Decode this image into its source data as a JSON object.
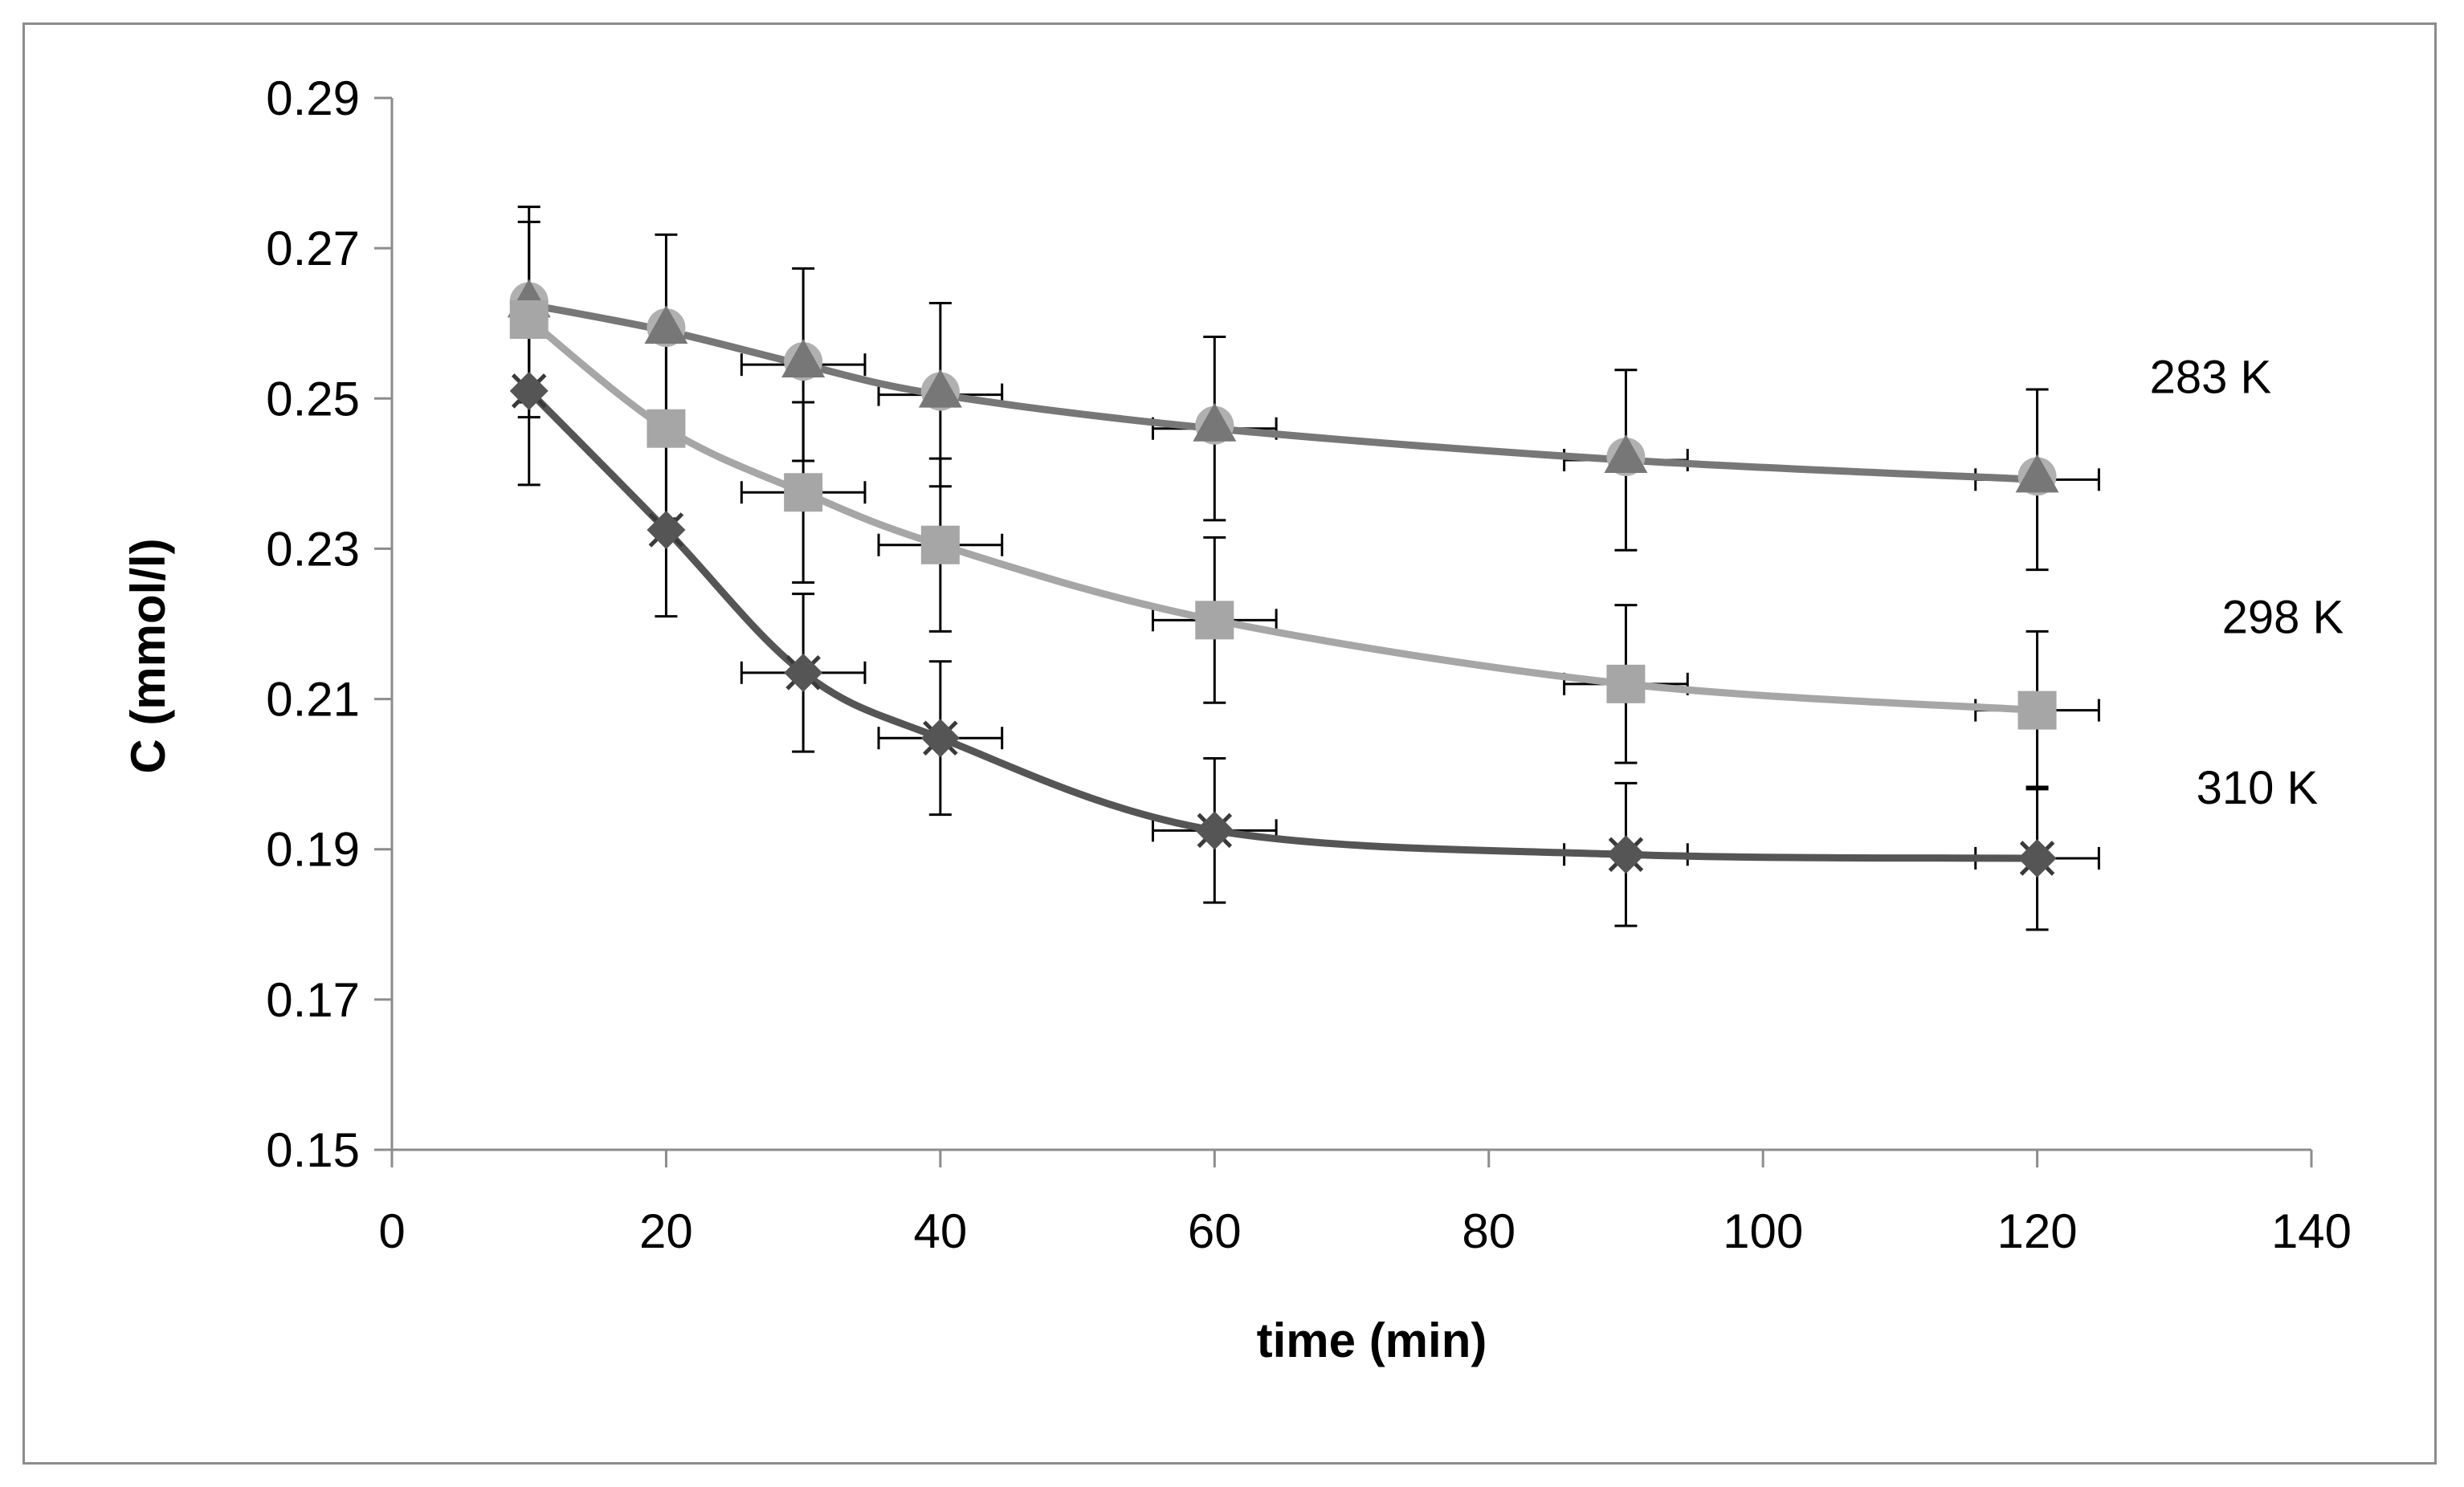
{
  "chart_data": {
    "type": "line",
    "title": "",
    "xlabel": "time (min)",
    "ylabel": "C (mmol/l)",
    "xlim": [
      0,
      140
    ],
    "ylim": [
      0.15,
      0.29
    ],
    "x_ticks": [
      "0",
      "20",
      "40",
      "60",
      "80",
      "100",
      "120",
      "140"
    ],
    "y_ticks": [
      "0.15",
      "0.17",
      "0.19",
      "0.21",
      "0.23",
      "0.25",
      "0.27",
      "0.29"
    ],
    "x_tick_values": [
      0,
      20,
      40,
      60,
      80,
      100,
      120,
      140
    ],
    "y_tick_values": [
      0.15,
      0.17,
      0.19,
      0.21,
      0.23,
      0.25,
      0.27,
      0.29
    ],
    "grid": false,
    "legend": "inline labels at right of each series",
    "x_error": 4.5,
    "series": [
      {
        "name": "283 K",
        "label": "283 K",
        "color": "#777777",
        "marker": "triangle",
        "x": [
          10,
          20,
          30,
          40,
          60,
          90,
          120
        ],
        "values": [
          0.2625,
          0.259,
          0.2545,
          0.2505,
          0.246,
          0.2418,
          0.2392
        ],
        "y_error": [
          0.013,
          0.0128,
          0.0128,
          0.0122,
          0.0122,
          0.012,
          0.012
        ]
      },
      {
        "name": "298 K",
        "label": "298 K",
        "color": "#a6a6a6",
        "marker": "square",
        "x": [
          10,
          20,
          30,
          40,
          60,
          90,
          120
        ],
        "values": [
          0.2605,
          0.246,
          0.2375,
          0.2305,
          0.2205,
          0.212,
          0.2085
        ],
        "y_error": [
          0.013,
          0.012,
          0.012,
          0.0115,
          0.011,
          0.0105,
          0.0105
        ]
      },
      {
        "name": "310 K",
        "label": "310 K",
        "color": "#555555",
        "marker": "diamond",
        "x": [
          10,
          20,
          30,
          40,
          60,
          90,
          120
        ],
        "values": [
          0.251,
          0.2325,
          0.2135,
          0.2048,
          0.1925,
          0.1893,
          0.1888
        ],
        "y_error": [
          0.0125,
          0.0115,
          0.0105,
          0.0102,
          0.0096,
          0.0095,
          0.0095
        ]
      }
    ]
  }
}
